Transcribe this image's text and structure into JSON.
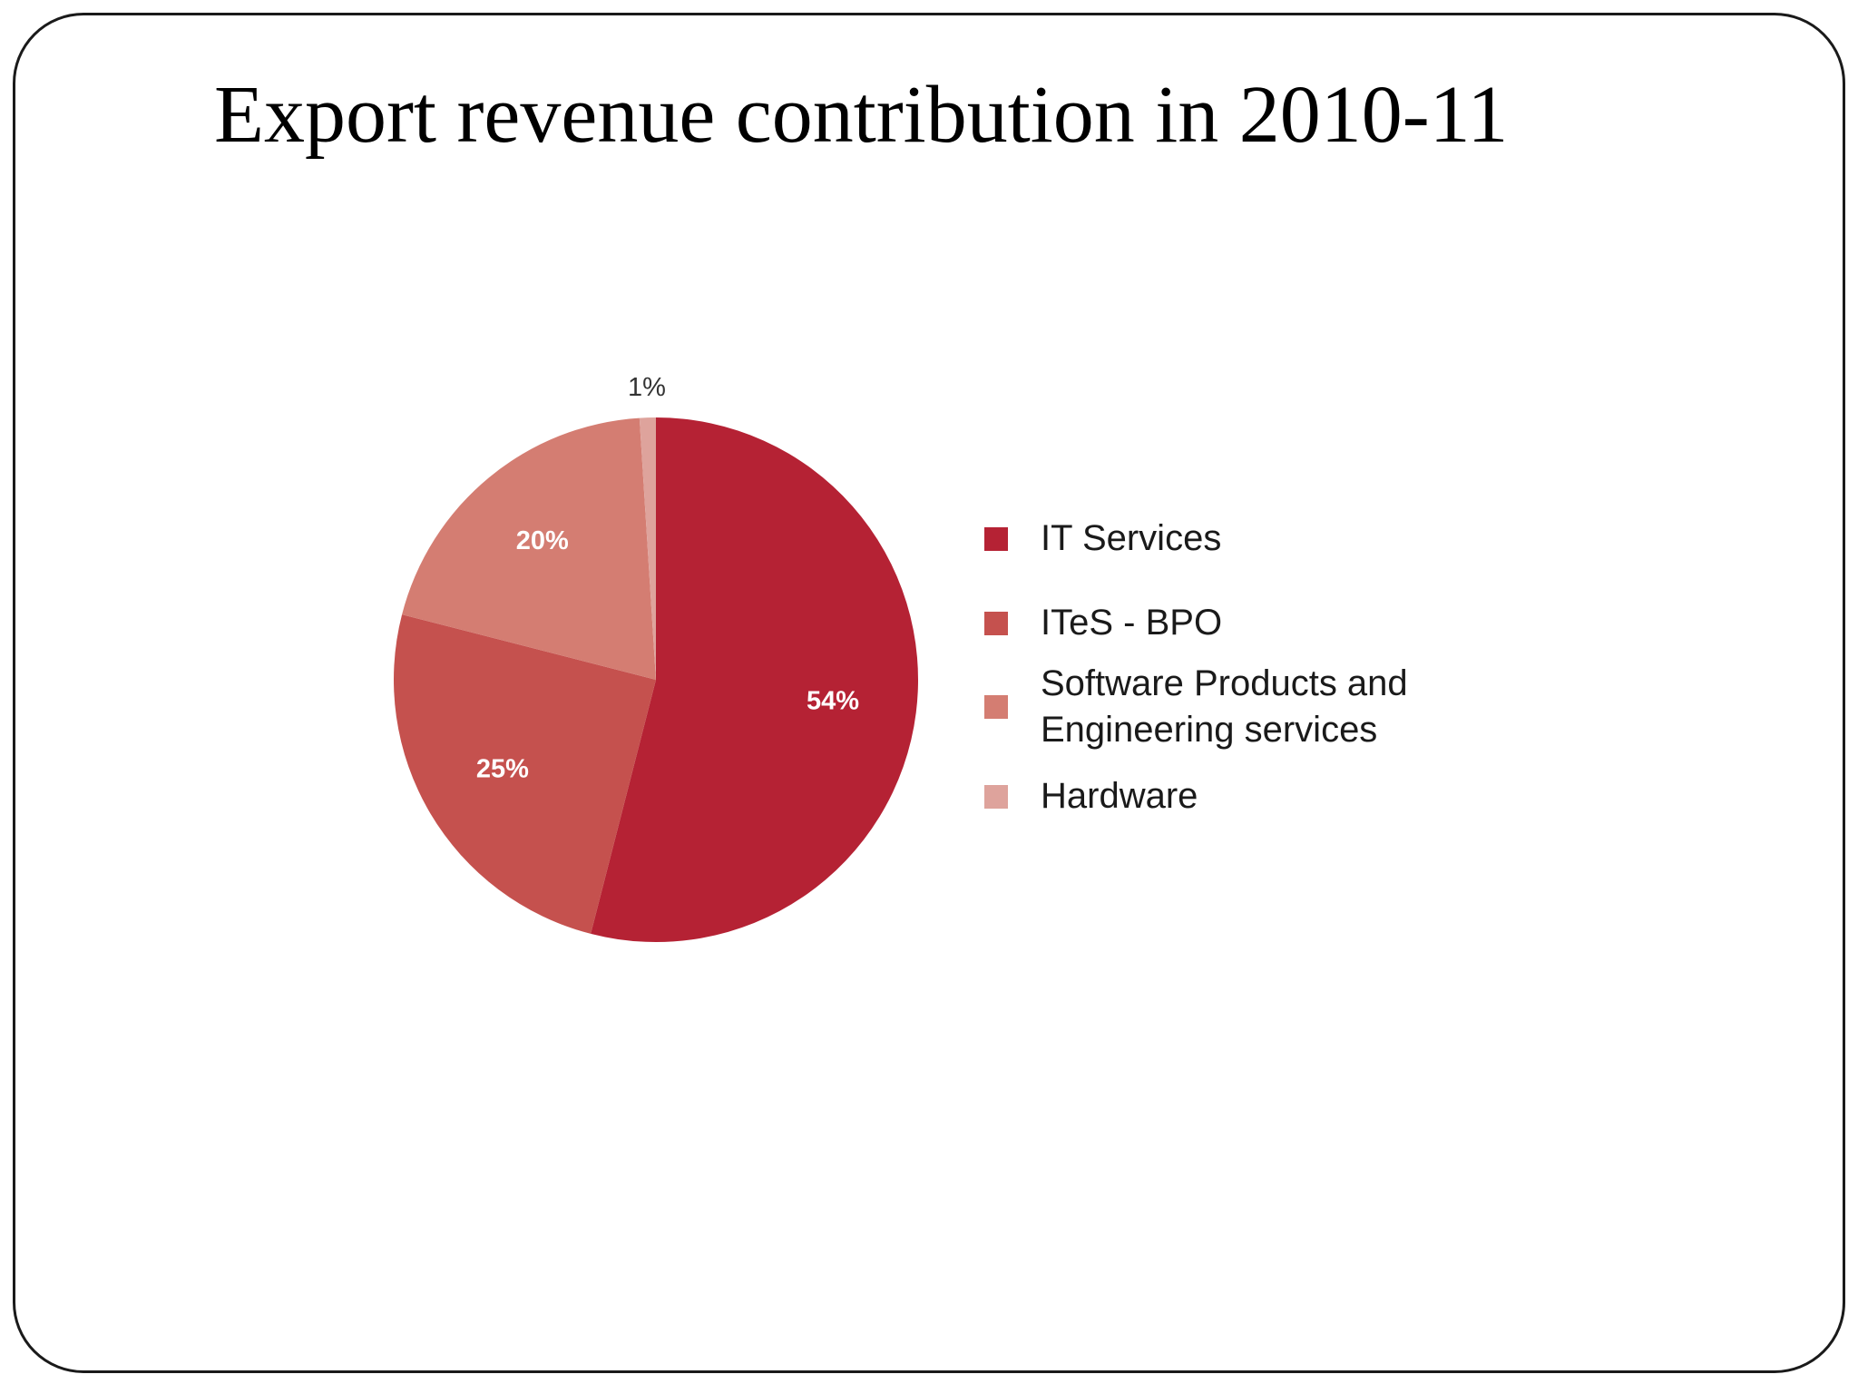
{
  "slide": {
    "title": "Export revenue contribution in 2010-11"
  },
  "chart_data": {
    "type": "pie",
    "title": "",
    "categories": [
      "IT Services",
      "ITeS - BPO",
      "Software Products and Engineering services",
      "Hardware"
    ],
    "values": [
      54,
      25,
      20,
      1
    ],
    "value_labels": [
      "54%",
      "25%",
      "20%",
      "1%"
    ],
    "colors": [
      "#b52234",
      "#c5514e",
      "#d47d72",
      "#dea39c"
    ],
    "direction": "clockwise",
    "start_angle_deg_from_top": 0,
    "legend_placement": "right"
  }
}
